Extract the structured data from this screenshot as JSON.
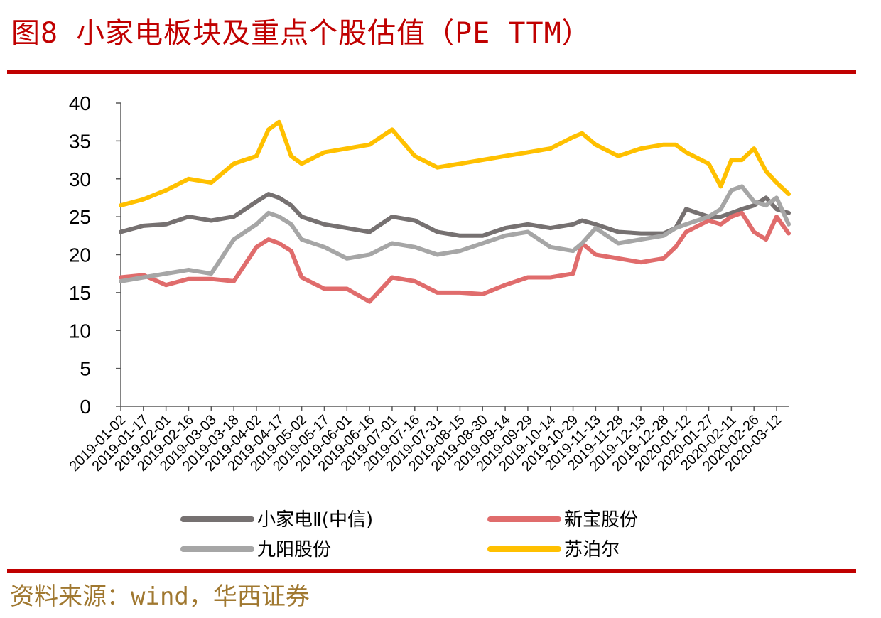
{
  "figure": {
    "title": "图8  小家电板块及重点个股估值（PE TTM）",
    "source": "资料来源：wind，华西证券"
  },
  "colors": {
    "rule": "#c00000",
    "title": "#c00000",
    "source": "#a07830"
  },
  "chart_data": {
    "type": "line",
    "title": "",
    "xlabel": "",
    "ylabel": "",
    "ylim": [
      0,
      40
    ],
    "yticks": [
      0,
      5,
      10,
      15,
      20,
      25,
      30,
      35,
      40
    ],
    "grid": false,
    "legend_position": "bottom",
    "x_tick_labels": [
      "2019-01-02",
      "2019-01-17",
      "2019-02-01",
      "2019-02-16",
      "2019-03-03",
      "2019-03-18",
      "2019-04-02",
      "2019-04-17",
      "2019-05-02",
      "2019-05-17",
      "2019-06-01",
      "2019-06-16",
      "2019-07-01",
      "2019-07-16",
      "2019-07-31",
      "2019-08-15",
      "2019-08-30",
      "2019-09-14",
      "2019-09-29",
      "2019-10-14",
      "2019-10-29",
      "2019-11-13",
      "2019-11-28",
      "2019-12-13",
      "2019-12-28",
      "2020-01-12",
      "2020-01-27",
      "2020-02-11",
      "2020-02-26",
      "2020-03-12"
    ],
    "x": [
      "2019-01-02",
      "2019-01-17",
      "2019-02-01",
      "2019-02-16",
      "2019-03-03",
      "2019-03-18",
      "2019-04-02",
      "2019-04-10",
      "2019-04-17",
      "2019-04-25",
      "2019-05-02",
      "2019-05-17",
      "2019-06-01",
      "2019-06-16",
      "2019-07-01",
      "2019-07-16",
      "2019-07-31",
      "2019-08-15",
      "2019-08-30",
      "2019-09-14",
      "2019-09-29",
      "2019-10-14",
      "2019-10-29",
      "2019-11-04",
      "2019-11-13",
      "2019-11-28",
      "2019-12-13",
      "2019-12-28",
      "2020-01-05",
      "2020-01-12",
      "2020-01-27",
      "2020-02-04",
      "2020-02-11",
      "2020-02-18",
      "2020-02-26",
      "2020-03-05",
      "2020-03-12",
      "2020-03-20"
    ],
    "series": [
      {
        "name": "小家电Ⅱ(中信)",
        "color": "#767171",
        "values": [
          23.0,
          23.8,
          24.0,
          25.0,
          24.5,
          25.0,
          27.0,
          28.0,
          27.5,
          26.5,
          25.0,
          24.0,
          23.5,
          23.0,
          25.0,
          24.5,
          23.0,
          22.5,
          22.5,
          23.5,
          24.0,
          23.5,
          24.0,
          24.5,
          24.0,
          23.0,
          22.8,
          22.8,
          23.5,
          26.0,
          25.0,
          25.0,
          25.5,
          26.0,
          26.5,
          27.5,
          26.0,
          25.5
        ]
      },
      {
        "name": "新宝股份",
        "color": "#e06c6c",
        "values": [
          17.0,
          17.3,
          16.0,
          16.8,
          16.8,
          16.5,
          21.0,
          22.0,
          21.5,
          20.5,
          17.0,
          15.5,
          15.5,
          13.8,
          17.0,
          16.5,
          15.0,
          15.0,
          14.8,
          16.0,
          17.0,
          17.0,
          17.5,
          21.5,
          20.0,
          19.5,
          19.0,
          19.5,
          21.0,
          23.0,
          24.5,
          24.0,
          25.0,
          25.5,
          23.0,
          22.0,
          25.0,
          22.8
        ]
      },
      {
        "name": "九阳股份",
        "color": "#a6a6a6",
        "values": [
          16.5,
          17.0,
          17.5,
          18.0,
          17.5,
          22.0,
          24.0,
          25.5,
          25.0,
          24.0,
          22.0,
          21.0,
          19.5,
          20.0,
          21.5,
          21.0,
          20.0,
          20.5,
          21.5,
          22.5,
          23.0,
          21.0,
          20.5,
          21.5,
          23.5,
          21.5,
          22.0,
          22.5,
          23.5,
          24.0,
          25.0,
          26.0,
          28.5,
          29.0,
          27.0,
          26.5,
          27.5,
          24.0
        ]
      },
      {
        "name": "苏泊尔",
        "color": "#ffc000",
        "values": [
          26.5,
          27.3,
          28.5,
          30.0,
          29.5,
          32.0,
          33.0,
          36.5,
          37.5,
          33.0,
          32.0,
          33.5,
          34.0,
          34.5,
          36.5,
          33.0,
          31.5,
          32.0,
          32.5,
          33.0,
          33.5,
          34.0,
          35.5,
          36.0,
          34.5,
          33.0,
          34.0,
          34.5,
          34.5,
          33.5,
          32.0,
          29.0,
          32.5,
          32.5,
          34.0,
          31.0,
          29.5,
          28.0
        ]
      }
    ]
  }
}
